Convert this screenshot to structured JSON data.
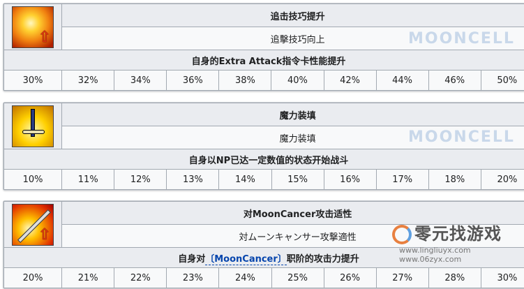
{
  "skills": [
    {
      "icon": "extra-attack-up-icon",
      "name_cn": "追击技巧提升",
      "name_jp": "追擊技巧向上",
      "desc": "自身的Extra Attack指令卡性能提升",
      "values": [
        "30%",
        "32%",
        "34%",
        "36%",
        "38%",
        "40%",
        "42%",
        "44%",
        "46%",
        "50%"
      ]
    },
    {
      "icon": "sword-np-charge-icon",
      "name_cn": "魔力装填",
      "name_jp": "魔力装填",
      "desc": "自身以NP已达一定数值的状态开始战斗",
      "values": [
        "10%",
        "11%",
        "12%",
        "13%",
        "14%",
        "15%",
        "16%",
        "17%",
        "18%",
        "20%"
      ]
    },
    {
      "icon": "sword-attack-up-icon",
      "name_cn": "对MoonCancer攻击适性",
      "name_jp": "対ムーンキャンサー攻撃適性",
      "desc_pre": "自身对",
      "desc_link": "〔MoonCancer〕",
      "desc_post": "职阶的攻击力提升",
      "values": [
        "20%",
        "21%",
        "22%",
        "23%",
        "24%",
        "25%",
        "26%",
        "27%",
        "28%",
        "30%"
      ]
    }
  ],
  "watermark": {
    "brand": "MOONCELL",
    "logo_text": "零元找游戏",
    "logo_url": "www.lingliuyx.com  www.06zyx.com"
  }
}
